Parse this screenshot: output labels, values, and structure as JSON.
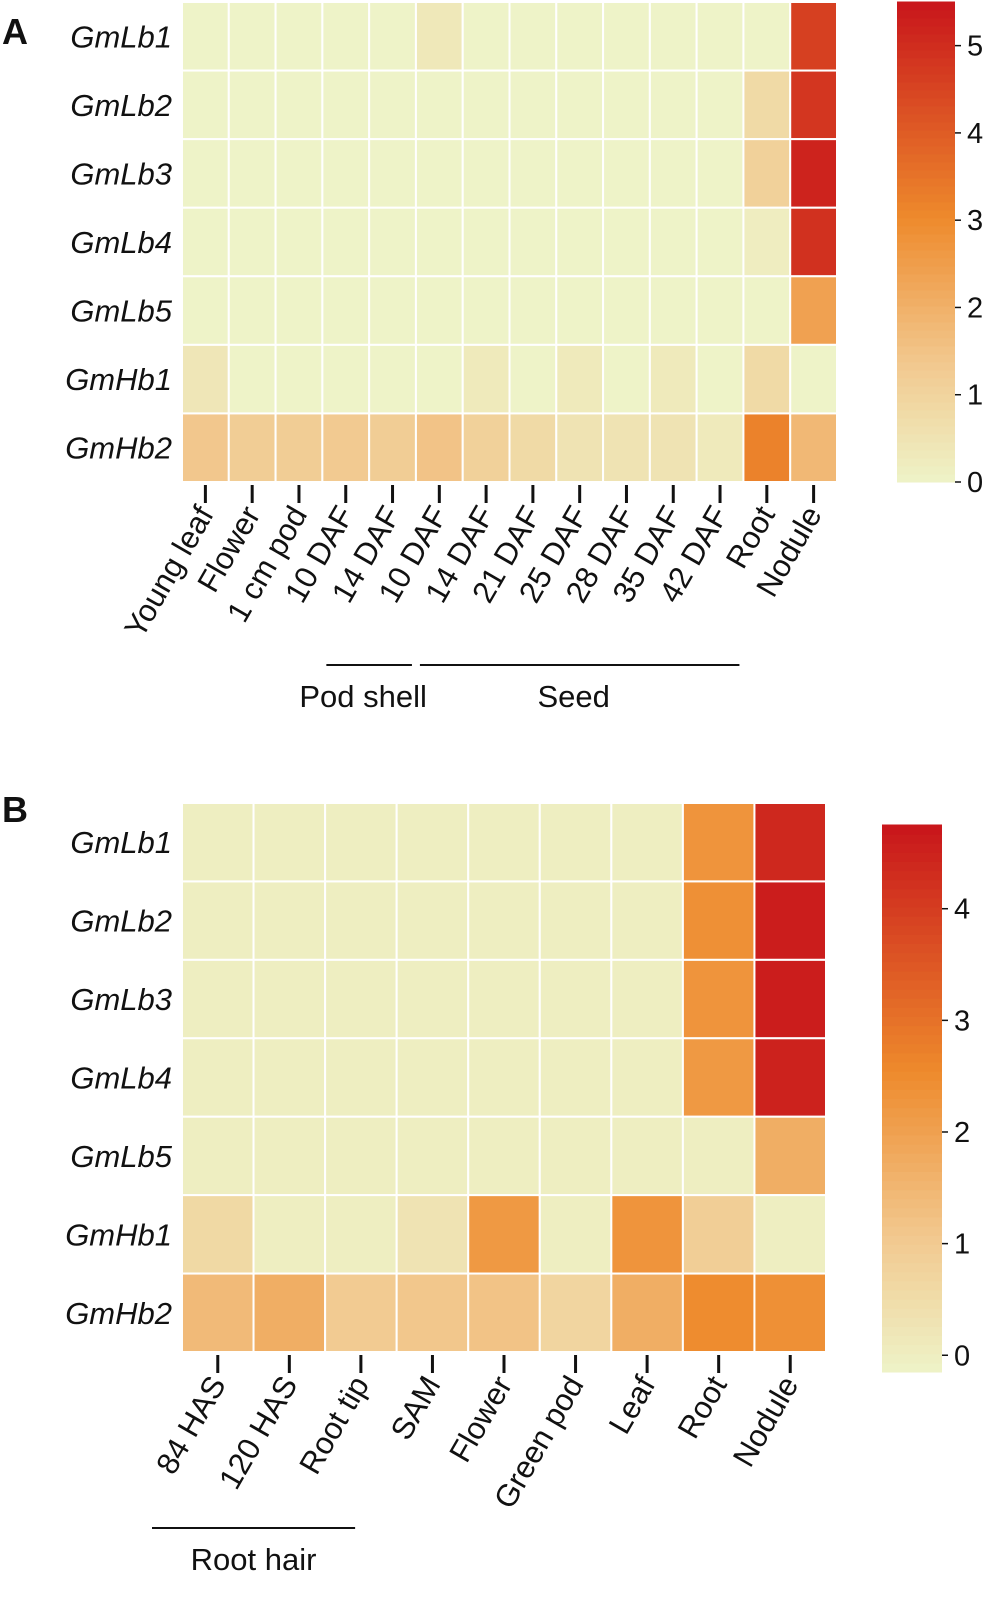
{
  "chart_data": [
    {
      "panel": "A",
      "type": "heatmap",
      "rows": [
        "GmLb1",
        "GmLb2",
        "GmLb3",
        "GmLb4",
        "GmLb5",
        "GmHb1",
        "GmHb2"
      ],
      "columns": [
        "Young leaf",
        "Flower",
        "1 cm pod",
        "10 DAF",
        "14 DAF",
        "10 DAF",
        "14 DAF",
        "21 DAF",
        "25 DAF",
        "28 DAF",
        "35 DAF",
        "42 DAF",
        "Root",
        "Nodule"
      ],
      "groups": [
        {
          "label": "Pod shell",
          "from_col": 3,
          "to_col": 4
        },
        {
          "label": "Seed",
          "from_col": 5,
          "to_col": 11
        }
      ],
      "values": [
        [
          0.0,
          0.0,
          0.0,
          0.0,
          0.0,
          0.35,
          0.0,
          0.0,
          0.0,
          0.0,
          0.0,
          0.0,
          0.0,
          4.6
        ],
        [
          0.0,
          0.0,
          0.0,
          0.0,
          0.0,
          0.0,
          0.0,
          0.0,
          0.0,
          0.0,
          0.0,
          0.0,
          0.8,
          4.8
        ],
        [
          0.0,
          0.0,
          0.0,
          0.0,
          0.0,
          0.0,
          0.0,
          0.0,
          0.0,
          0.0,
          0.0,
          0.0,
          1.1,
          5.2
        ],
        [
          0.0,
          0.0,
          0.0,
          0.0,
          0.0,
          0.0,
          0.0,
          0.0,
          0.0,
          0.0,
          0.0,
          0.0,
          0.2,
          4.9
        ],
        [
          0.0,
          0.0,
          0.0,
          0.0,
          0.0,
          0.0,
          0.0,
          0.0,
          0.0,
          0.0,
          0.0,
          0.0,
          0.0,
          2.4
        ],
        [
          0.4,
          0.0,
          0.0,
          0.0,
          0.0,
          0.0,
          0.3,
          0.0,
          0.3,
          0.0,
          0.3,
          0.0,
          0.8,
          0.0
        ],
        [
          1.4,
          1.2,
          1.2,
          1.3,
          1.2,
          1.5,
          1.1,
          0.8,
          0.5,
          0.5,
          0.5,
          0.3,
          3.2,
          1.8
        ]
      ],
      "colorbar": {
        "min": 0,
        "max": 5.5,
        "ticks": [
          0,
          1,
          2,
          3,
          4,
          5
        ]
      },
      "colors": {
        "low": "#eef3c8",
        "mid_low": "#f2c88e",
        "mid": "#ee8a2c",
        "high": "#c8151b"
      }
    },
    {
      "panel": "B",
      "type": "heatmap",
      "rows": [
        "GmLb1",
        "GmLb2",
        "GmLb3",
        "GmLb4",
        "GmLb5",
        "GmHb1",
        "GmHb2"
      ],
      "columns": [
        "84 HAS",
        "120 HAS",
        "Root tip",
        "SAM",
        "Flower",
        "Green pod",
        "Leaf",
        "Root",
        "Nodule"
      ],
      "groups": [
        {
          "label": "Root hair",
          "from_col": 0,
          "to_col": 1
        }
      ],
      "values": [
        [
          0.0,
          0.0,
          0.0,
          0.0,
          0.0,
          0.0,
          0.0,
          2.3,
          4.4
        ],
        [
          0.0,
          0.0,
          0.0,
          0.0,
          0.0,
          0.0,
          0.0,
          2.4,
          4.6
        ],
        [
          0.0,
          0.0,
          0.0,
          0.0,
          0.0,
          0.0,
          0.0,
          2.3,
          4.6
        ],
        [
          0.0,
          0.0,
          0.0,
          0.0,
          0.0,
          0.0,
          0.0,
          2.2,
          4.5
        ],
        [
          0.0,
          0.0,
          0.0,
          0.0,
          0.0,
          0.0,
          0.0,
          0.0,
          1.7
        ],
        [
          0.6,
          0.0,
          0.0,
          0.3,
          2.2,
          0.0,
          2.3,
          0.9,
          0.0
        ],
        [
          1.4,
          1.7,
          1.0,
          1.1,
          1.2,
          0.7,
          1.7,
          2.5,
          2.4
        ]
      ],
      "colorbar": {
        "min": -0.15,
        "max": 4.75,
        "ticks": [
          0,
          1,
          2,
          3,
          4
        ]
      },
      "colors": {
        "low": "#eef3c8",
        "mid_low": "#f2c88e",
        "mid": "#ee8a2c",
        "high": "#c8151b"
      }
    }
  ]
}
